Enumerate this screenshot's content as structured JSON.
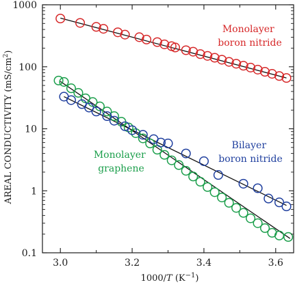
{
  "chart_data": {
    "type": "scatter",
    "title": "",
    "xlabel": "1000/T (K⁻¹)",
    "xlabel_parts": {
      "prefix": "1000/",
      "var": "T",
      "unit": " (K",
      "sup": "−1",
      "close": ")"
    },
    "ylabel": "AREAL CONDUCTIVITY (mS/cm²)",
    "ylabel_parts": {
      "main": "AREAL CONDUCTIVITY (mS/cm",
      "sup": "2",
      "close": ")"
    },
    "xlim": [
      2.95,
      3.65
    ],
    "ylim": [
      0.1,
      1000
    ],
    "yscale": "log",
    "x_ticks": [
      3.0,
      3.2,
      3.4,
      3.6
    ],
    "x_tick_labels": [
      "3.0",
      "3.2",
      "3.4",
      "3.6"
    ],
    "y_ticks": [
      0.1,
      1,
      10,
      100,
      1000
    ],
    "y_tick_labels": [
      "0.1",
      "1",
      "10",
      "100",
      "1000"
    ],
    "grid": false,
    "legend": "none",
    "series": [
      {
        "name": "Monolayer boron nitride",
        "label_lines": [
          "Monolayer",
          "boron nitride"
        ],
        "color": "#d62728",
        "fit": {
          "x": [
            3.0,
            3.63
          ],
          "y": [
            610,
            66
          ]
        },
        "x": [
          3.0,
          3.055,
          3.1,
          3.12,
          3.16,
          3.18,
          3.22,
          3.24,
          3.27,
          3.29,
          3.31,
          3.32,
          3.35,
          3.37,
          3.39,
          3.41,
          3.43,
          3.45,
          3.47,
          3.49,
          3.51,
          3.53,
          3.55,
          3.57,
          3.59,
          3.61,
          3.63
        ],
        "y": [
          600,
          510,
          440,
          410,
          360,
          330,
          300,
          275,
          250,
          230,
          215,
          205,
          185,
          175,
          160,
          150,
          140,
          130,
          120,
          112,
          104,
          97,
          90,
          83,
          77,
          71,
          66
        ]
      },
      {
        "name": "Monolayer graphene",
        "label_lines": [
          "Monolayer",
          "graphene"
        ],
        "color": "#1a9e4a",
        "fit": {
          "x": [
            3.0,
            3.64
          ],
          "y": [
            58,
            0.17
          ]
        },
        "x": [
          2.995,
          3.01,
          3.03,
          3.05,
          3.07,
          3.09,
          3.11,
          3.13,
          3.15,
          3.17,
          3.19,
          3.21,
          3.23,
          3.25,
          3.27,
          3.29,
          3.31,
          3.33,
          3.35,
          3.37,
          3.39,
          3.41,
          3.43,
          3.45,
          3.47,
          3.49,
          3.51,
          3.53,
          3.55,
          3.57,
          3.59,
          3.61,
          3.635
        ],
        "y": [
          60,
          57,
          45,
          38,
          31,
          27,
          23,
          19,
          16,
          13,
          10.5,
          8.5,
          7,
          5.8,
          4.6,
          3.8,
          3.1,
          2.6,
          2.1,
          1.7,
          1.4,
          1.15,
          0.95,
          0.78,
          0.64,
          0.53,
          0.44,
          0.36,
          0.3,
          0.25,
          0.21,
          0.19,
          0.18
        ]
      },
      {
        "name": "Bilayer boron nitride",
        "label_lines": [
          "Bilayer",
          "boron nitride"
        ],
        "color": "#1f3f9e",
        "fit": {
          "x": [
            3.01,
            3.63
          ],
          "y": [
            33,
            0.58
          ]
        },
        "x": [
          3.01,
          3.03,
          3.06,
          3.08,
          3.1,
          3.13,
          3.15,
          3.18,
          3.2,
          3.23,
          3.26,
          3.28,
          3.3,
          3.35,
          3.4,
          3.44,
          3.51,
          3.55,
          3.58,
          3.61,
          3.63
        ],
        "y": [
          33,
          29,
          25,
          22,
          19,
          16,
          13.5,
          11,
          9.5,
          8,
          6.8,
          6,
          5.8,
          4,
          3,
          1.8,
          1.3,
          1.1,
          0.75,
          0.65,
          0.56
        ]
      }
    ]
  }
}
